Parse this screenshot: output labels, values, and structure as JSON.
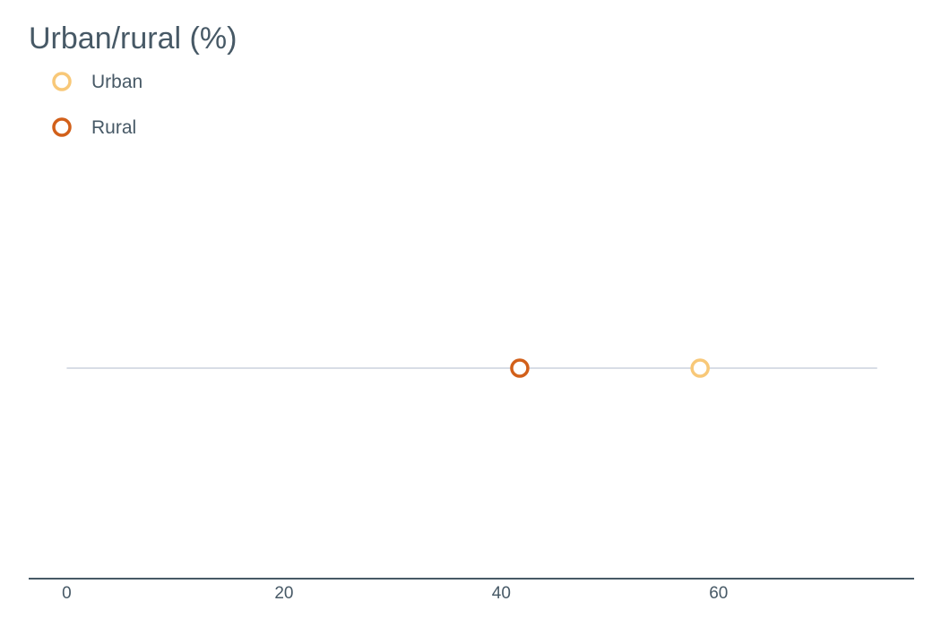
{
  "chart_data": {
    "type": "scatter",
    "title": "Urban/rural (%)",
    "xlabel": "",
    "ylabel": "",
    "xlim": [
      -3.5,
      78
    ],
    "x_ticks": [
      0,
      20,
      40,
      60
    ],
    "grid": false,
    "legend": "top-left",
    "series": [
      {
        "name": "Urban",
        "values": [
          58.3
        ],
        "color": "#f8c878"
      },
      {
        "name": "Rural",
        "values": [
          41.7
        ],
        "color": "#d2601a"
      }
    ],
    "track_range": [
      0,
      74.6
    ],
    "track_color": "#d8dde6",
    "axis_color": "#475966"
  }
}
